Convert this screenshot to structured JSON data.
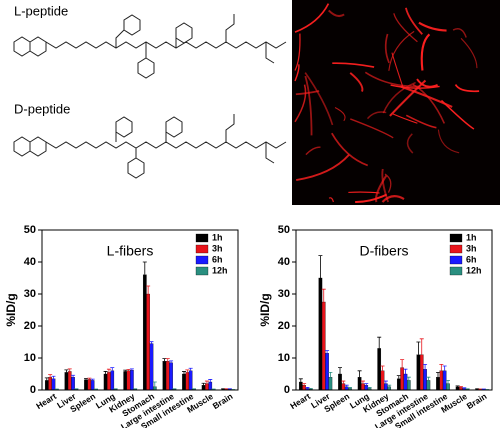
{
  "structures": [
    {
      "label": "L-peptide"
    },
    {
      "label": "D-peptide"
    }
  ],
  "chart_data": [
    {
      "type": "bar",
      "title": "L-fibers",
      "y_label": "%ID/g",
      "categories": [
        "Heart",
        "Liver",
        "Spleen",
        "Lung",
        "Kidney",
        "Stomach",
        "Large intestine",
        "Small intestine",
        "Muscle",
        "Brain"
      ],
      "series": [
        {
          "name": "1h",
          "color": "#000000",
          "values": [
            3,
            5.5,
            3.2,
            5,
            5.8,
            36,
            9,
            5,
            1.5,
            0.3
          ],
          "errors": [
            0.8,
            0.8,
            0.4,
            0.8,
            0.4,
            4,
            0.8,
            0.8,
            0.6,
            0.1
          ]
        },
        {
          "name": "3h",
          "color": "#e8141b",
          "values": [
            4,
            5.8,
            3.3,
            5.5,
            6,
            30,
            9,
            5.5,
            2,
            0.3
          ],
          "errors": [
            0.8,
            0.8,
            0.4,
            1,
            0.4,
            2.5,
            0.8,
            0.8,
            0.8,
            0.1
          ]
        },
        {
          "name": "6h",
          "color": "#1a1aff",
          "values": [
            3.5,
            4,
            3,
            6,
            6.2,
            14.5,
            8.5,
            6,
            2.5,
            0.3
          ],
          "errors": [
            0.8,
            0.6,
            0.4,
            1,
            0.4,
            0.6,
            0.6,
            0.8,
            0.8,
            0.1
          ]
        },
        {
          "name": "12h",
          "color": "#2a8f80",
          "values": [
            0.2,
            0.3,
            0.2,
            0.3,
            0.3,
            1,
            0.3,
            0.3,
            0.2,
            0.1
          ],
          "errors": [
            0.1,
            0.1,
            0.1,
            0.1,
            0.1,
            1.5,
            0.1,
            0.1,
            0.1,
            0.05
          ]
        }
      ],
      "ylim": [
        0,
        50
      ],
      "yticks": [
        0,
        10,
        20,
        30,
        40,
        50
      ],
      "legend": "upper right"
    },
    {
      "type": "bar",
      "title": "D-fibers",
      "y_label": "%ID/g",
      "categories": [
        "Heart",
        "Liver",
        "Spleen",
        "Lung",
        "Kidney",
        "Stomach",
        "Large intestine",
        "Small intestine",
        "Muscle",
        "Brain"
      ],
      "series": [
        {
          "name": "1h",
          "color": "#000000",
          "values": [
            2.5,
            35,
            5,
            4,
            13,
            3.5,
            11,
            4,
            1,
            0.3
          ],
          "errors": [
            1,
            7,
            2,
            2,
            3.5,
            1,
            4,
            1.5,
            0.3,
            0.1
          ]
        },
        {
          "name": "3h",
          "color": "#e8141b",
          "values": [
            1.5,
            27.5,
            2,
            2,
            6,
            7,
            11,
            6,
            0.8,
            0.2
          ],
          "errors": [
            0.5,
            4,
            0.8,
            0.8,
            1.5,
            2.5,
            5,
            2,
            0.3,
            0.1
          ]
        },
        {
          "name": "6h",
          "color": "#1a1aff",
          "values": [
            0.5,
            11.5,
            1,
            1.5,
            2,
            5,
            6.5,
            6,
            0.5,
            0.2
          ],
          "errors": [
            0.3,
            0.8,
            0.5,
            0.5,
            0.8,
            1.5,
            1.5,
            1.5,
            0.2,
            0.1
          ]
        },
        {
          "name": "12h",
          "color": "#2a8f80",
          "values": [
            0.3,
            4,
            0.5,
            0.5,
            1,
            3,
            3,
            2,
            0.3,
            0.1
          ],
          "errors": [
            0.2,
            1.5,
            0.3,
            0.3,
            0.5,
            1,
            1,
            1,
            0.1,
            0.05
          ]
        }
      ],
      "ylim": [
        0,
        50
      ],
      "yticks": [
        0,
        10,
        20,
        30,
        40,
        50
      ],
      "legend": "upper right"
    }
  ]
}
